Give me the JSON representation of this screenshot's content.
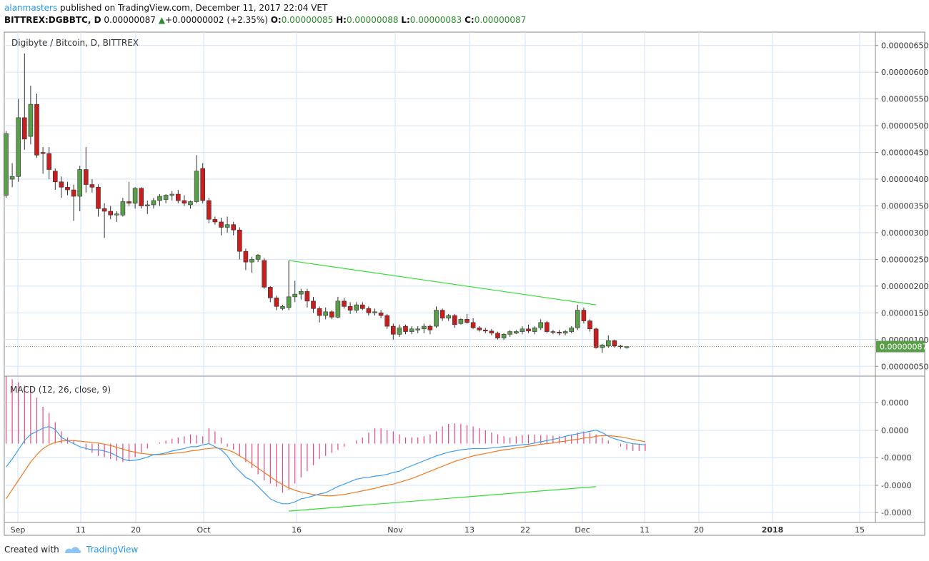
{
  "header": {
    "user": "alanmasters",
    "published_text": "published on TradingView.com, December 11, 2017 22:04 VET",
    "symbol": "BITTREX:DGBBTC, D",
    "last": "0.00000087",
    "change": "+0.00000002 (+2.35%)",
    "o_label": "O:",
    "o": "0.00000085",
    "h_label": "H:",
    "h": "0.00000088",
    "l_label": "L:",
    "l": "0.00000083",
    "c_label": "C:",
    "c": "0.00000087"
  },
  "footer": {
    "created_with": "Created with",
    "brand": "TradingView"
  },
  "colors": {
    "up_body": "#5a9e4b",
    "down_body": "#c81e1e",
    "wick": "#333333",
    "grid": "#d2e3f7",
    "trend": "#33dd33",
    "macd": "#3d9df0",
    "signal": "#f07a22",
    "hist": "#e8457c"
  },
  "chart_data": {
    "type": "candlestick",
    "title": "Digibyte / Bitcoin, D, BITTREX",
    "x_ticks": [
      "Sep",
      "11",
      "20",
      "Oct",
      "16",
      "Nov",
      "13",
      "22",
      "Dec",
      "11",
      "20",
      "2018",
      "15"
    ],
    "y_ticks": [
      "0.00000650",
      "0.00000600",
      "0.00000550",
      "0.00000500",
      "0.00000450",
      "0.00000400",
      "0.00000350",
      "0.00000300",
      "0.00000250",
      "0.00000200",
      "0.00000150",
      "0.00000100",
      "0.00000050"
    ],
    "ylim": [
      3.3e-07,
      6.75e-06
    ],
    "last_price_label": "0.00000087",
    "candles": [
      {
        "o": 3.7e-06,
        "h": 4.9e-06,
        "l": 3.65e-06,
        "c": 4.85e-06
      },
      {
        "o": 4e-06,
        "h": 4.3e-06,
        "l": 3.85e-06,
        "c": 4.05e-06
      },
      {
        "o": 4.05e-06,
        "h": 5.5e-06,
        "l": 3.95e-06,
        "c": 5.15e-06
      },
      {
        "o": 5.15e-06,
        "h": 6.35e-06,
        "l": 4.55e-06,
        "c": 4.75e-06
      },
      {
        "o": 4.8e-06,
        "h": 5.75e-06,
        "l": 4.65e-06,
        "c": 5.4e-06
      },
      {
        "o": 5.4e-06,
        "h": 5.6e-06,
        "l": 4.4e-06,
        "c": 4.45e-06
      },
      {
        "o": 4.5e-06,
        "h": 4.6e-06,
        "l": 4.1e-06,
        "c": 4.48e-06
      },
      {
        "o": 4.48e-06,
        "h": 4.6e-06,
        "l": 4e-06,
        "c": 4.18e-06
      },
      {
        "o": 4.15e-06,
        "h": 4.2e-06,
        "l": 3.8e-06,
        "c": 3.95e-06
      },
      {
        "o": 3.95e-06,
        "h": 4.05e-06,
        "l": 3.65e-06,
        "c": 3.85e-06
      },
      {
        "o": 3.85e-06,
        "h": 3.95e-06,
        "l": 3.7e-06,
        "c": 3.8e-06
      },
      {
        "o": 3.8e-06,
        "h": 3.9e-06,
        "l": 3.22e-06,
        "c": 3.68e-06
      },
      {
        "o": 3.68e-06,
        "h": 4.25e-06,
        "l": 3.4e-06,
        "c": 4.18e-06
      },
      {
        "o": 4.18e-06,
        "h": 4.6e-06,
        "l": 3.75e-06,
        "c": 3.9e-06
      },
      {
        "o": 3.9e-06,
        "h": 4e-06,
        "l": 3.75e-06,
        "c": 3.85e-06
      },
      {
        "o": 3.85e-06,
        "h": 3.9e-06,
        "l": 3.3e-06,
        "c": 3.45e-06
      },
      {
        "o": 3.45e-06,
        "h": 3.55e-06,
        "l": 2.9e-06,
        "c": 3.4e-06
      },
      {
        "o": 3.4e-06,
        "h": 3.5e-06,
        "l": 3.25e-06,
        "c": 3.33e-06
      },
      {
        "o": 3.33e-06,
        "h": 3.4e-06,
        "l": 3.2e-06,
        "c": 3.35e-06
      },
      {
        "o": 3.33e-06,
        "h": 3.65e-06,
        "l": 3.3e-06,
        "c": 3.58e-06
      },
      {
        "o": 3.58e-06,
        "h": 3.95e-06,
        "l": 3.5e-06,
        "c": 3.55e-06
      },
      {
        "o": 3.55e-06,
        "h": 3.85e-06,
        "l": 3.45e-06,
        "c": 3.83e-06
      },
      {
        "o": 3.83e-06,
        "h": 3.85e-06,
        "l": 3.45e-06,
        "c": 3.5e-06
      },
      {
        "o": 3.5e-06,
        "h": 3.6e-06,
        "l": 3.35e-06,
        "c": 3.52e-06
      },
      {
        "o": 3.52e-06,
        "h": 3.65e-06,
        "l": 3.45e-06,
        "c": 3.6e-06
      },
      {
        "o": 3.6e-06,
        "h": 3.72e-06,
        "l": 3.5e-06,
        "c": 3.68e-06
      },
      {
        "o": 3.62e-06,
        "h": 3.72e-06,
        "l": 3.55e-06,
        "c": 3.7e-06
      },
      {
        "o": 3.7e-06,
        "h": 3.78e-06,
        "l": 3.6e-06,
        "c": 3.72e-06
      },
      {
        "o": 3.72e-06,
        "h": 3.8e-06,
        "l": 3.55e-06,
        "c": 3.6e-06
      },
      {
        "o": 3.6e-06,
        "h": 3.7e-06,
        "l": 3.5e-06,
        "c": 3.55e-06
      },
      {
        "o": 3.52e-06,
        "h": 3.6e-06,
        "l": 3.45e-06,
        "c": 3.58e-06
      },
      {
        "o": 3.58e-06,
        "h": 4.45e-06,
        "l": 3.55e-06,
        "c": 4.15e-06
      },
      {
        "o": 4.2e-06,
        "h": 4.3e-06,
        "l": 3.55e-06,
        "c": 3.6e-06
      },
      {
        "o": 3.6e-06,
        "h": 3.65e-06,
        "l": 3.18e-06,
        "c": 3.25e-06
      },
      {
        "o": 3.25e-06,
        "h": 3.3e-06,
        "l": 3.15e-06,
        "c": 3.2e-06
      },
      {
        "o": 3.2e-06,
        "h": 3.28e-06,
        "l": 2.95e-06,
        "c": 3.1e-06
      },
      {
        "o": 3.1e-06,
        "h": 3.3e-06,
        "l": 3e-06,
        "c": 3.15e-06
      },
      {
        "o": 3.15e-06,
        "h": 3.2e-06,
        "l": 2.95e-06,
        "c": 3.05e-06
      },
      {
        "o": 3.05e-06,
        "h": 3.1e-06,
        "l": 2.5e-06,
        "c": 2.65e-06
      },
      {
        "o": 2.65e-06,
        "h": 2.7e-06,
        "l": 2.3e-06,
        "c": 2.45e-06
      },
      {
        "o": 2.45e-06,
        "h": 2.55e-06,
        "l": 2.25e-06,
        "c": 2.5e-06
      },
      {
        "o": 2.5e-06,
        "h": 2.6e-06,
        "l": 2.45e-06,
        "c": 2.58e-06
      },
      {
        "o": 2.48e-06,
        "h": 2.52e-06,
        "l": 1.95e-06,
        "c": 1.98e-06
      },
      {
        "o": 1.98e-06,
        "h": 2e-06,
        "l": 1.7e-06,
        "c": 1.78e-06
      },
      {
        "o": 1.78e-06,
        "h": 1.82e-06,
        "l": 1.55e-06,
        "c": 1.62e-06
      },
      {
        "o": 1.58e-06,
        "h": 1.65e-06,
        "l": 1.55e-06,
        "c": 1.62e-06
      },
      {
        "o": 1.6e-06,
        "h": 2.48e-06,
        "l": 1.55e-06,
        "c": 1.8e-06
      },
      {
        "o": 1.8e-06,
        "h": 2.1e-06,
        "l": 1.7e-06,
        "c": 1.85e-06
      },
      {
        "o": 1.85e-06,
        "h": 1.95e-06,
        "l": 1.75e-06,
        "c": 1.9e-06
      },
      {
        "o": 1.9e-06,
        "h": 1.95e-06,
        "l": 1.6e-06,
        "c": 1.72e-06
      },
      {
        "o": 1.72e-06,
        "h": 1.8e-06,
        "l": 1.5e-06,
        "c": 1.58e-06
      },
      {
        "o": 1.58e-06,
        "h": 1.62e-06,
        "l": 1.32e-06,
        "c": 1.45e-06
      },
      {
        "o": 1.45e-06,
        "h": 1.6e-06,
        "l": 1.38e-06,
        "c": 1.52e-06
      },
      {
        "o": 1.52e-06,
        "h": 1.55e-06,
        "l": 1.38e-06,
        "c": 1.42e-06
      },
      {
        "o": 1.42e-06,
        "h": 1.8e-06,
        "l": 1.4e-06,
        "c": 1.72e-06
      },
      {
        "o": 1.72e-06,
        "h": 1.78e-06,
        "l": 1.58e-06,
        "c": 1.62e-06
      },
      {
        "o": 1.62e-06,
        "h": 1.7e-06,
        "l": 1.48e-06,
        "c": 1.55e-06
      },
      {
        "o": 1.55e-06,
        "h": 1.7e-06,
        "l": 1.5e-06,
        "c": 1.65e-06
      },
      {
        "o": 1.65e-06,
        "h": 1.7e-06,
        "l": 1.55e-06,
        "c": 1.58e-06
      },
      {
        "o": 1.58e-06,
        "h": 1.62e-06,
        "l": 1.45e-06,
        "c": 1.5e-06
      },
      {
        "o": 1.5e-06,
        "h": 1.58e-06,
        "l": 1.45e-06,
        "c": 1.52e-06
      },
      {
        "o": 1.5e-06,
        "h": 1.55e-06,
        "l": 1.4e-06,
        "c": 1.45e-06
      },
      {
        "o": 1.45e-06,
        "h": 1.48e-06,
        "l": 1.2e-06,
        "c": 1.25e-06
      },
      {
        "o": 1.25e-06,
        "h": 1.3e-06,
        "l": 1e-06,
        "c": 1.1e-06
      },
      {
        "o": 1.1e-06,
        "h": 1.28e-06,
        "l": 1.05e-06,
        "c": 1.22e-06
      },
      {
        "o": 1.25e-06,
        "h": 1.28e-06,
        "l": 1.1e-06,
        "c": 1.15e-06
      },
      {
        "o": 1.15e-06,
        "h": 1.25e-06,
        "l": 1.1e-06,
        "c": 1.2e-06
      },
      {
        "o": 1.18e-06,
        "h": 1.25e-06,
        "l": 1.12e-06,
        "c": 1.2e-06
      },
      {
        "o": 1.2e-06,
        "h": 1.3e-06,
        "l": 1.12e-06,
        "c": 1.25e-06
      },
      {
        "o": 1.25e-06,
        "h": 1.28e-06,
        "l": 1.1e-06,
        "c": 1.18e-06
      },
      {
        "o": 1.25e-06,
        "h": 1.62e-06,
        "l": 1.22e-06,
        "c": 1.55e-06
      },
      {
        "o": 1.55e-06,
        "h": 1.58e-06,
        "l": 1.35e-06,
        "c": 1.4e-06
      },
      {
        "o": 1.4e-06,
        "h": 1.48e-06,
        "l": 1.35e-06,
        "c": 1.45e-06
      },
      {
        "o": 1.45e-06,
        "h": 1.48e-06,
        "l": 1.22e-06,
        "c": 1.28e-06
      },
      {
        "o": 1.3e-06,
        "h": 1.4e-06,
        "l": 1.28e-06,
        "c": 1.38e-06
      },
      {
        "o": 1.38e-06,
        "h": 1.48e-06,
        "l": 1.3e-06,
        "c": 1.32e-06
      },
      {
        "o": 1.32e-06,
        "h": 1.4e-06,
        "l": 1.2e-06,
        "c": 1.22e-06
      },
      {
        "o": 1.22e-06,
        "h": 1.25e-06,
        "l": 1.15e-06,
        "c": 1.18e-06
      },
      {
        "o": 1.18e-06,
        "h": 1.22e-06,
        "l": 1.12e-06,
        "c": 1.16e-06
      },
      {
        "o": 1.16e-06,
        "h": 1.2e-06,
        "l": 1.08e-06,
        "c": 1.12e-06
      },
      {
        "o": 1.12e-06,
        "h": 1.15e-06,
        "l": 1e-06,
        "c": 1.03e-06
      },
      {
        "o": 1.03e-06,
        "h": 1.12e-06,
        "l": 1e-06,
        "c": 1.1e-06
      },
      {
        "o": 1.1e-06,
        "h": 1.18e-06,
        "l": 1.05e-06,
        "c": 1.15e-06
      },
      {
        "o": 1.12e-06,
        "h": 1.18e-06,
        "l": 1.1e-06,
        "c": 1.15e-06
      },
      {
        "o": 1.15e-06,
        "h": 1.25e-06,
        "l": 1.1e-06,
        "c": 1.2e-06
      },
      {
        "o": 1.2e-06,
        "h": 1.28e-06,
        "l": 1.12e-06,
        "c": 1.16e-06
      },
      {
        "o": 1.15e-06,
        "h": 1.25e-06,
        "l": 1.1e-06,
        "c": 1.22e-06
      },
      {
        "o": 1.22e-06,
        "h": 1.38e-06,
        "l": 1.18e-06,
        "c": 1.32e-06
      },
      {
        "o": 1.32e-06,
        "h": 1.35e-06,
        "l": 1.12e-06,
        "c": 1.15e-06
      },
      {
        "o": 1.15e-06,
        "h": 1.18e-06,
        "l": 1.1e-06,
        "c": 1.14e-06
      },
      {
        "o": 1.14e-06,
        "h": 1.18e-06,
        "l": 1.08e-06,
        "c": 1.12e-06
      },
      {
        "o": 1.12e-06,
        "h": 1.18e-06,
        "l": 1.08e-06,
        "c": 1.15e-06
      },
      {
        "o": 1.15e-06,
        "h": 1.25e-06,
        "l": 1.12e-06,
        "c": 1.22e-06
      },
      {
        "o": 1.22e-06,
        "h": 1.65e-06,
        "l": 1.18e-06,
        "c": 1.55e-06
      },
      {
        "o": 1.55e-06,
        "h": 1.6e-06,
        "l": 1.3e-06,
        "c": 1.35e-06
      },
      {
        "o": 1.35e-06,
        "h": 1.38e-06,
        "l": 1.15e-06,
        "c": 1.2e-06
      },
      {
        "o": 1.2e-06,
        "h": 1.22e-06,
        "l": 8.3e-07,
        "c": 8.5e-07
      },
      {
        "o": 8.5e-07,
        "h": 9.2e-07,
        "l": 7.5e-07,
        "c": 9e-07
      },
      {
        "o": 8.8e-07,
        "h": 1.08e-06,
        "l": 8.5e-07,
        "c": 9.8e-07
      },
      {
        "o": 9.8e-07,
        "h": 1e-06,
        "l": 8.5e-07,
        "c": 8.8e-07
      },
      {
        "o": 8.8e-07,
        "h": 9e-07,
        "l": 8.3e-07,
        "c": 8.7e-07
      },
      {
        "o": 8.5e-07,
        "h": 8.8e-07,
        "l": 8.3e-07,
        "c": 8.7e-07
      }
    ],
    "price_trendline": {
      "from": {
        "bar": 46,
        "price": 2.48e-06
      },
      "to": {
        "bar": 96,
        "price": 1.65e-06
      }
    },
    "macd": {
      "label": "MACD (12, 26, close, 9)",
      "y_ticks": [
        "0.0000",
        "0.0000",
        "-0.0000",
        "-0.0000",
        "-0.0000"
      ],
      "ylim": [
        -1.25,
        1.1
      ],
      "macd_line": [
        -0.38,
        -0.25,
        -0.1,
        0.05,
        0.15,
        0.2,
        0.25,
        0.28,
        0.23,
        0.1,
        0.05,
        0,
        -0.05,
        -0.08,
        -0.1,
        -0.1,
        -0.12,
        -0.15,
        -0.2,
        -0.25,
        -0.28,
        -0.27,
        -0.25,
        -0.22,
        -0.18,
        -0.17,
        -0.15,
        -0.12,
        -0.1,
        -0.08,
        -0.05,
        -0.05,
        -0.02,
        0,
        -0.05,
        -0.1,
        -0.2,
        -0.35,
        -0.45,
        -0.55,
        -0.6,
        -0.7,
        -0.8,
        -0.9,
        -0.95,
        -0.98,
        -0.98,
        -0.95,
        -0.9,
        -0.88,
        -0.85,
        -0.82,
        -0.8,
        -0.75,
        -0.7,
        -0.66,
        -0.62,
        -0.58,
        -0.56,
        -0.55,
        -0.53,
        -0.52,
        -0.5,
        -0.47,
        -0.45,
        -0.4,
        -0.36,
        -0.32,
        -0.28,
        -0.24,
        -0.2,
        -0.17,
        -0.14,
        -0.12,
        -0.1,
        -0.09,
        -0.08,
        -0.08,
        -0.08,
        -0.07,
        -0.06,
        -0.05,
        -0.04,
        -0.03,
        -0.02,
        -0.01,
        0.01,
        0.03,
        0.05,
        0.07,
        0.09,
        0.12,
        0.14,
        0.16,
        0.18,
        0.2,
        0.22,
        0.18,
        0.12,
        0.08,
        0.05,
        0.02,
        0,
        -0.01,
        -0.02
      ],
      "signal_line": [
        -0.9,
        -0.75,
        -0.6,
        -0.45,
        -0.3,
        -0.18,
        -0.08,
        -0.02,
        0.02,
        0.04,
        0.05,
        0.05,
        0.04,
        0.03,
        0.02,
        0.01,
        -0.01,
        -0.03,
        -0.06,
        -0.09,
        -0.12,
        -0.14,
        -0.16,
        -0.17,
        -0.18,
        -0.18,
        -0.17,
        -0.16,
        -0.15,
        -0.14,
        -0.12,
        -0.11,
        -0.09,
        -0.08,
        -0.07,
        -0.08,
        -0.1,
        -0.14,
        -0.2,
        -0.26,
        -0.33,
        -0.4,
        -0.47,
        -0.54,
        -0.61,
        -0.67,
        -0.72,
        -0.76,
        -0.79,
        -0.81,
        -0.83,
        -0.84,
        -0.85,
        -0.85,
        -0.84,
        -0.83,
        -0.81,
        -0.79,
        -0.77,
        -0.75,
        -0.73,
        -0.7,
        -0.68,
        -0.66,
        -0.63,
        -0.6,
        -0.57,
        -0.53,
        -0.49,
        -0.45,
        -0.41,
        -0.37,
        -0.33,
        -0.29,
        -0.26,
        -0.23,
        -0.2,
        -0.18,
        -0.16,
        -0.14,
        -0.12,
        -0.1,
        -0.09,
        -0.07,
        -0.06,
        -0.04,
        -0.03,
        -0.01,
        0,
        0.01,
        0.03,
        0.04,
        0.06,
        0.07,
        0.09,
        0.1,
        0.12,
        0.13,
        0.13,
        0.12,
        0.11,
        0.09,
        0.07,
        0.05,
        0.03
      ],
      "histogram": [
        1.1,
        1.05,
        1.0,
        0.95,
        0.9,
        0.75,
        0.6,
        0.5,
        0.35,
        0.2,
        0.1,
        0.05,
        0,
        -0.1,
        -0.15,
        -0.2,
        -0.22,
        -0.25,
        -0.28,
        -0.3,
        -0.28,
        -0.22,
        -0.15,
        -0.08,
        0,
        0.02,
        0.05,
        0.08,
        0.1,
        0.12,
        0.15,
        0.14,
        0.12,
        0.25,
        0.2,
        0.1,
        -0.05,
        -0.1,
        -0.2,
        -0.3,
        -0.4,
        -0.5,
        -0.6,
        -0.65,
        -0.7,
        -0.8,
        -0.75,
        -0.65,
        -0.55,
        -0.45,
        -0.35,
        -0.25,
        -0.2,
        -0.15,
        -0.1,
        -0.05,
        0,
        0.05,
        0.1,
        0.18,
        0.25,
        0.25,
        0.22,
        0.2,
        0.15,
        0.1,
        0.1,
        0.1,
        0.12,
        0.15,
        0.2,
        0.28,
        0.32,
        0.33,
        0.32,
        0.3,
        0.28,
        0.25,
        0.22,
        0.18,
        0.15,
        0.12,
        0.1,
        0.12,
        0.14,
        0.15,
        0.15,
        0.14,
        0.14,
        0.13,
        0.12,
        0.12,
        0.15,
        0.18,
        0.2,
        0.18,
        0.15,
        0.1,
        0.05,
        0,
        -0.05,
        -0.1,
        -0.12,
        -0.12,
        -0.12
      ],
      "trendline": {
        "from": {
          "bar": 46,
          "value": -1.1
        },
        "to": {
          "bar": 96,
          "value": -0.7
        }
      }
    }
  }
}
